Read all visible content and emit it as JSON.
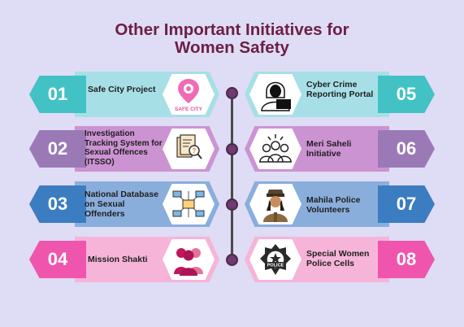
{
  "title": {
    "line1": "Other Important Initiatives for",
    "line2": "Women Safety"
  },
  "colors": {
    "background": "#dfdcf5",
    "title": "#6b1f45",
    "teal": "#43c2c6",
    "teal_light": "#a6e0e6",
    "purple": "#9b79b6",
    "purple_light": "#cc93d2",
    "blue": "#3b7dc0",
    "blue_light": "#8aaedb",
    "pink": "#ef55ad",
    "pink_light": "#f6b4d9"
  },
  "initiatives": [
    {
      "number": "01",
      "label": "Safe City Project",
      "icon": "safe-city-pin-icon",
      "logo_text": "SAFE CITY"
    },
    {
      "number": "02",
      "label": "Investigation Tracking System for Sexual Offences (ITSSO)",
      "icon": "document-search-icon"
    },
    {
      "number": "03",
      "label": "National Database on Sexual Offenders",
      "icon": "network-database-icon"
    },
    {
      "number": "04",
      "label": "Mission Shakti",
      "icon": "women-group-icon"
    },
    {
      "number": "05",
      "label": "Cyber Crime Reporting Portal",
      "icon": "hacker-icon"
    },
    {
      "number": "06",
      "label": "Meri Saheli Initiative",
      "icon": "group-people-icon"
    },
    {
      "number": "07",
      "label": "Mahila Police Volunteers",
      "icon": "police-woman-icon"
    },
    {
      "number": "08",
      "label": "Special Women Police Cells",
      "icon": "police-badge-icon",
      "badge_text": "POLICE"
    }
  ]
}
